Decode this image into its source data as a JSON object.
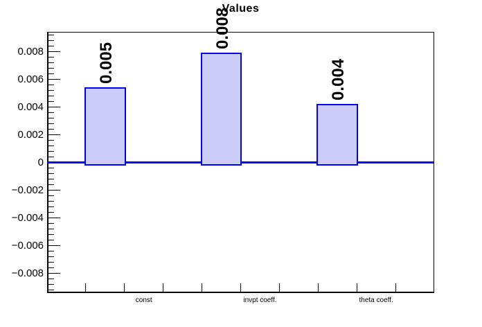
{
  "chart_data": {
    "type": "bar",
    "title": "Values",
    "categories": [
      "const",
      "invpt coeff.",
      "theta coeff."
    ],
    "values": [
      0.0054,
      0.0079,
      0.0042
    ],
    "bar_value_labels": [
      "0.005",
      "0.008",
      "0.004"
    ],
    "xlabel": "",
    "ylabel": "",
    "ylim": [
      -0.0094,
      0.0094
    ],
    "y_major_ticks": [
      0.008,
      0.006,
      0.004,
      0.002,
      0,
      -0.002,
      -0.004,
      -0.006,
      -0.008
    ],
    "y_major_tick_labels": [
      "0.008",
      "0.006",
      "0.004",
      "0.002",
      "0",
      "−0.002",
      "−0.004",
      "−0.006",
      "−0.008"
    ],
    "y_minor_tick_step": 0.0004,
    "x_axis_divisions": 10,
    "grid": false,
    "legend": "none",
    "baseline": 0,
    "colors": {
      "bar_fill": "#ccccf9",
      "bar_border": "#0000f5",
      "zero_line": "#0000f5",
      "axis": "#000000",
      "text": "#000000",
      "background": "#ffffff"
    }
  }
}
